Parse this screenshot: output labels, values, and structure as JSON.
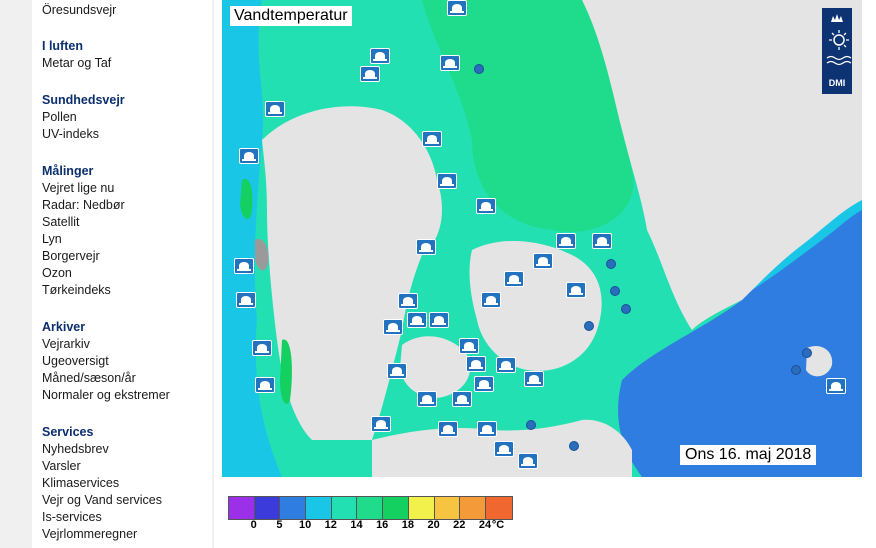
{
  "sidebar": {
    "top_link": "Öresundsvejr",
    "sections": [
      {
        "heading": "I luften",
        "items": [
          "Metar og Taf"
        ]
      },
      {
        "heading": "Sundhedsvejr",
        "items": [
          "Pollen",
          "UV-indeks"
        ]
      },
      {
        "heading": "Målinger",
        "items": [
          "Vejret lige nu",
          "Radar: Nedbør",
          "Satellit",
          "Lyn",
          "Borgervejr",
          "Ozon",
          "Tørkeindeks"
        ]
      },
      {
        "heading": "Arkiver",
        "items": [
          "Vejrarkiv",
          "Ugeoversigt",
          "Måned/sæson/år",
          "Normaler og ekstremer"
        ]
      },
      {
        "heading": "Services",
        "items": [
          "Nyhedsbrev",
          "Varsler",
          "Klimaservices",
          "Vejr og Vand services",
          "Is-services",
          "Vejrlommeregner"
        ]
      }
    ]
  },
  "map": {
    "title": "Vandtemperatur",
    "date": "Ons 16. maj 2018",
    "logo_text": "DMI",
    "icons": {
      "beach": "blue-flag-beach-icon",
      "buoy": "measurement-buoy-icon"
    },
    "colors": {
      "land": "#e4e4e4",
      "water_14_16": "#1edc8c",
      "water_12_14": "#22e0b2",
      "water_10_12": "#1ac6e6",
      "water_5_10": "#2f7de0",
      "water_16_18": "#14d060"
    }
  },
  "legend": {
    "colors": [
      "#9b30e8",
      "#3b3bdc",
      "#2f7de0",
      "#1ac6e6",
      "#22e0b2",
      "#1edc8c",
      "#14d060",
      "#f2f04a",
      "#f6c440",
      "#f49a38",
      "#f06830"
    ],
    "labels": [
      "0",
      "5",
      "10",
      "12",
      "14",
      "16",
      "18",
      "20",
      "22",
      "24"
    ],
    "unit": "°C"
  }
}
